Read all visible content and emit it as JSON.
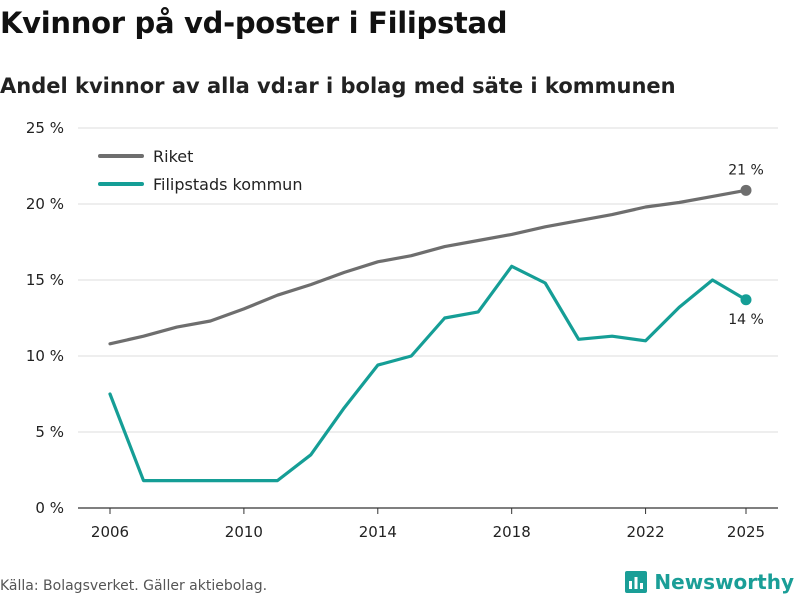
{
  "title": "Kvinnor på vd-poster i Filipstad",
  "subtitle": "Andel kvinnor av alla vd:ar i bolag med säte i kommunen",
  "source": "Källa: Bolagsverket. Gäller aktiebolag.",
  "brand": "Newsworthy",
  "colors": {
    "riket": "#6e6e6e",
    "kommun": "#159e96",
    "grid": "#dddddd",
    "brand": "#1a9e97"
  },
  "chart_data": {
    "type": "line",
    "x": [
      2006,
      2007,
      2008,
      2009,
      2010,
      2011,
      2012,
      2013,
      2014,
      2015,
      2016,
      2017,
      2018,
      2019,
      2020,
      2021,
      2022,
      2023,
      2024,
      2025
    ],
    "series": [
      {
        "name": "Riket",
        "color": "#6e6e6e",
        "values": [
          10.8,
          11.3,
          11.9,
          12.3,
          13.1,
          14.0,
          14.7,
          15.5,
          16.2,
          16.6,
          17.2,
          17.6,
          18.0,
          18.5,
          18.9,
          19.3,
          19.8,
          20.1,
          20.5,
          20.9
        ],
        "end_label": "21 %"
      },
      {
        "name": "Filipstads kommun",
        "color": "#159e96",
        "values": [
          7.5,
          1.8,
          1.8,
          1.8,
          1.8,
          1.8,
          3.5,
          6.6,
          9.4,
          10.0,
          12.5,
          12.9,
          15.9,
          14.8,
          11.1,
          11.3,
          11.0,
          13.2,
          15.0,
          13.7
        ],
        "end_label": "14 %"
      }
    ],
    "y_ticks": [
      0,
      5,
      10,
      15,
      20,
      25
    ],
    "y_tick_labels": [
      "0 %",
      "5 %",
      "10 %",
      "15 %",
      "20 %",
      "25 %"
    ],
    "x_ticks": [
      2006,
      2010,
      2014,
      2018,
      2022,
      2025
    ],
    "x_tick_labels": [
      "2006",
      "2010",
      "2014",
      "2018",
      "2022",
      "2025"
    ],
    "ylim": [
      0,
      25
    ],
    "xlim": [
      2006,
      2025
    ],
    "grid": true,
    "legend_position": "top-left"
  }
}
